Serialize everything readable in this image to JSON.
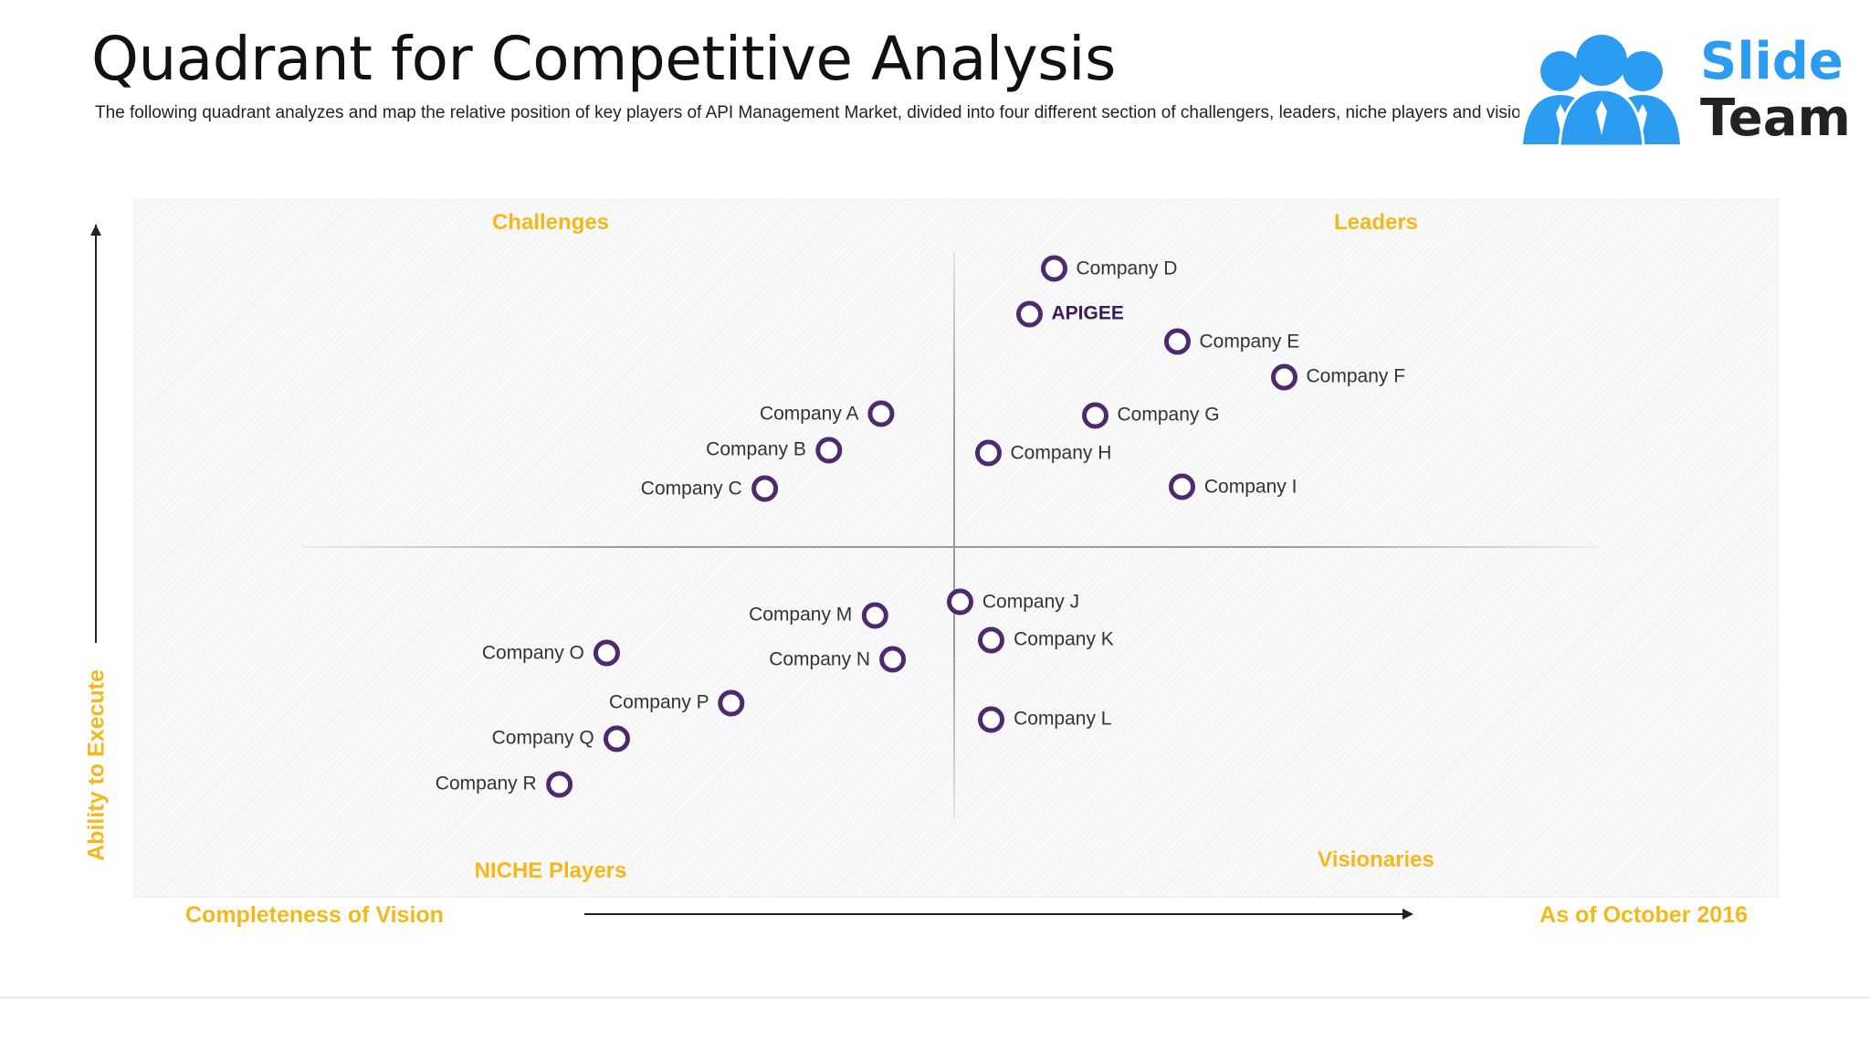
{
  "title": "Quadrant for Competitive Analysis",
  "subtitle": "The following quadrant analyzes and map the relative position of  key players of API Management Market, divided into four different section of challengers, leaders, niche players and visionaries",
  "logo": {
    "line1": "Slide",
    "line2": "Team"
  },
  "quadrants": {
    "top_left": "Challenges",
    "top_right": "Leaders",
    "bottom_left": "NICHE Players",
    "bottom_right": "Visionaries"
  },
  "axes": {
    "y_label": "Ability to Execute",
    "x_label": "Completeness of Vision",
    "date": "As of October 2016"
  },
  "colors": {
    "accent": "#f5b81a",
    "marker": "#4d2a6e",
    "highlight": "#3b1a5e",
    "logo_blue": "#2b9cf0"
  },
  "companies": [
    {
      "name": "Company D",
      "vision": 0.56,
      "execute": 0.9,
      "side": "right",
      "highlight": false
    },
    {
      "name": "APIGEE",
      "vision": 0.545,
      "execute": 0.835,
      "side": "right",
      "highlight": true
    },
    {
      "name": "Company E",
      "vision": 0.635,
      "execute": 0.795,
      "side": "right",
      "highlight": false
    },
    {
      "name": "Company F",
      "vision": 0.7,
      "execute": 0.745,
      "side": "right",
      "highlight": false
    },
    {
      "name": "Company G",
      "vision": 0.585,
      "execute": 0.69,
      "side": "right",
      "highlight": false
    },
    {
      "name": "Company H",
      "vision": 0.52,
      "execute": 0.635,
      "side": "right",
      "highlight": false
    },
    {
      "name": "Company I",
      "vision": 0.638,
      "execute": 0.587,
      "side": "right",
      "highlight": false
    },
    {
      "name": "Company A",
      "vision": 0.455,
      "execute": 0.692,
      "side": "left",
      "highlight": false
    },
    {
      "name": "Company B",
      "vision": 0.423,
      "execute": 0.64,
      "side": "left",
      "highlight": false
    },
    {
      "name": "Company C",
      "vision": 0.384,
      "execute": 0.584,
      "side": "left",
      "highlight": false
    },
    {
      "name": "Company J",
      "vision": 0.503,
      "execute": 0.422,
      "side": "right",
      "highlight": false
    },
    {
      "name": "Company K",
      "vision": 0.522,
      "execute": 0.367,
      "side": "right",
      "highlight": false
    },
    {
      "name": "Company L",
      "vision": 0.522,
      "execute": 0.253,
      "side": "right",
      "highlight": false
    },
    {
      "name": "Company M",
      "vision": 0.451,
      "execute": 0.403,
      "side": "left",
      "highlight": false
    },
    {
      "name": "Company N",
      "vision": 0.462,
      "execute": 0.339,
      "side": "left",
      "highlight": false
    },
    {
      "name": "Company O",
      "vision": 0.288,
      "execute": 0.348,
      "side": "left",
      "highlight": false
    },
    {
      "name": "Company P",
      "vision": 0.364,
      "execute": 0.277,
      "side": "left",
      "highlight": false
    },
    {
      "name": "Company Q",
      "vision": 0.294,
      "execute": 0.226,
      "side": "left",
      "highlight": false
    },
    {
      "name": "Company R",
      "vision": 0.259,
      "execute": 0.16,
      "side": "left",
      "highlight": false
    }
  ]
}
